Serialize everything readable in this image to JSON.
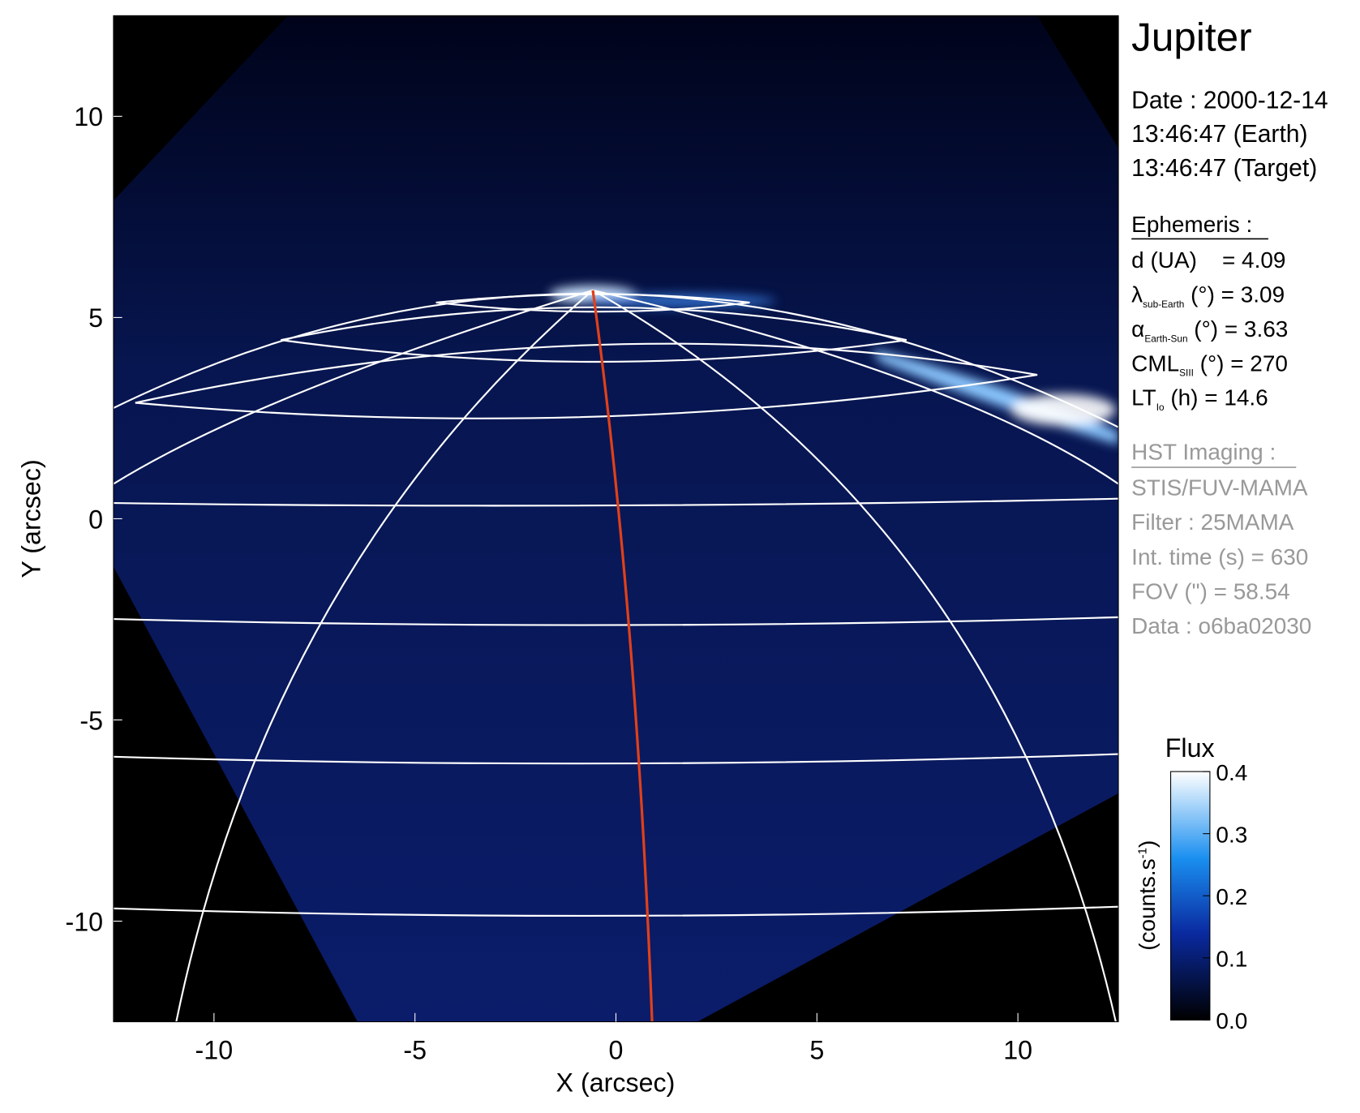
{
  "chart_data": {
    "type": "image",
    "xlabel": "X (arcsec)",
    "ylabel": "Y (arcsec)",
    "xlim": [
      -12.5,
      12.5
    ],
    "ylim": [
      -12.5,
      12.5
    ],
    "xticks": [
      -10,
      -5,
      0,
      5,
      10
    ],
    "yticks": [
      -10,
      -5,
      0,
      5,
      10
    ],
    "colorbar": {
      "title": "Flux",
      "label": "(counts.s",
      "label_sup": "-1",
      "label_end": ")",
      "lim": [
        0,
        0.4
      ],
      "ticks": [
        {
          "value": 0,
          "label": "0.0"
        },
        0.1,
        0.2,
        0.3,
        0.4
      ]
    }
  },
  "info": {
    "title": "Jupiter",
    "date": [
      "Date : 2000-12-14",
      "13:46:47 (Earth)",
      "13:46:47 (Target)"
    ],
    "ephemeris": {
      "heading": "Ephemeris :",
      "lines": [
        {
          "symbol": "d (UA)",
          "text": "    = 4.09"
        },
        {
          "symbol": "λ",
          "sub": "sub-Earth",
          "text": " (°) = 3.09"
        },
        {
          "symbol": "α",
          "sub": "Earth-Sun",
          "text": " (°) = 3.63"
        },
        {
          "symbol": "CML",
          "sub": "SIII",
          "text": " (°) = 270"
        },
        {
          "symbol": "LT",
          "sub": "Io",
          "text": " (h) = 14.6"
        }
      ]
    },
    "imaging": {
      "heading": "HST Imaging :",
      "lines": [
        "STIS/FUV-MAMA",
        "Filter : 25MAMA",
        "Int. time (s) = 630",
        "FOV (\") = 58.54",
        "Data : o6ba02030"
      ]
    }
  }
}
